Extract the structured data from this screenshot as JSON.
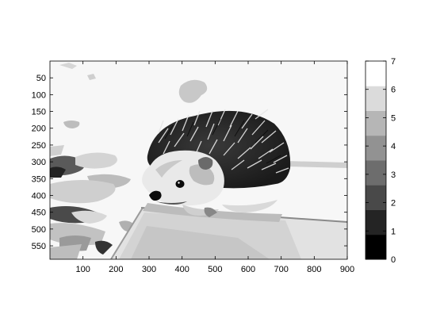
{
  "chart_data": [
    {
      "type": "heatmap",
      "title": "",
      "xlabel": "",
      "ylabel": "",
      "colormap": "gray",
      "color_levels": 8,
      "xlim": [
        0,
        900
      ],
      "ylim": [
        590,
        0
      ],
      "x_ticks": [
        100,
        200,
        300,
        400,
        500,
        600,
        700,
        800,
        900
      ],
      "y_ticks": [
        50,
        100,
        150,
        200,
        250,
        300,
        350,
        400,
        450,
        500,
        550
      ],
      "grid": false,
      "image_subject": "hedgehog on a ledge, quantized to 8 gray levels (0–7)"
    },
    {
      "type": "colorbar",
      "clim": [
        0,
        7
      ],
      "ticks": [
        0,
        1,
        2,
        3,
        4,
        5,
        6,
        7
      ],
      "colormap": "gray",
      "colors": {
        "low": "#000000",
        "high": "#ffffff"
      }
    }
  ]
}
